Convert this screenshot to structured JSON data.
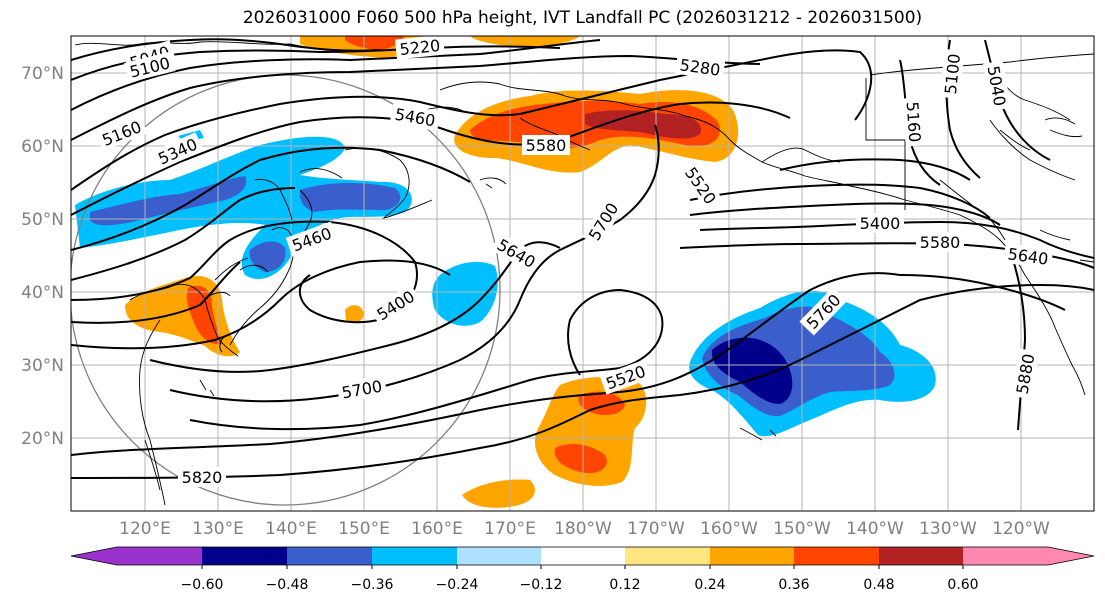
{
  "title": "2026031000 F060 500 hPa height, IVT Landfall PC (2026031212 - 2026031500)",
  "lat_labels": [
    "70°N",
    "60°N",
    "50°N",
    "40°N",
    "30°N",
    "20°N"
  ],
  "lon_labels": [
    "120°E",
    "130°E",
    "140°E",
    "150°E",
    "160°E",
    "170°E",
    "180°W",
    "170°W",
    "160°W",
    "150°W",
    "140°W",
    "130°W",
    "120°W"
  ],
  "contour_labels": {
    "c5040a": "5040",
    "c5100": "5100",
    "c5160a": "5160",
    "c5220": "5220",
    "c5280": "5280",
    "c5340": "5340",
    "c5460": "5460",
    "c5580a": "5580",
    "c5520a": "5520",
    "c5700a": "5700",
    "c5640a": "5640",
    "c5400a": "5400",
    "c5460b": "5460",
    "c5700b": "5700",
    "c5520b": "5520",
    "c5760": "5760",
    "c5820": "5820",
    "c5400b": "5400",
    "c5580b": "5580",
    "c5640b": "5640",
    "c5880": "5880",
    "c5100b": "5100",
    "c5160b": "5160",
    "c5040b": "5040"
  },
  "colorbar": {
    "ticks": [
      "−0.60",
      "−0.48",
      "−0.36",
      "−0.24",
      "−0.12",
      "0.12",
      "0.24",
      "0.36",
      "0.48",
      "0.60"
    ],
    "colors": [
      "#9932cc",
      "#00008b",
      "#3a5fcd",
      "#00bfff",
      "#b0e0ff",
      "#ffffff",
      "#ffe680",
      "#ffa500",
      "#ff4500",
      "#b22222",
      "#ff88b0"
    ]
  }
}
